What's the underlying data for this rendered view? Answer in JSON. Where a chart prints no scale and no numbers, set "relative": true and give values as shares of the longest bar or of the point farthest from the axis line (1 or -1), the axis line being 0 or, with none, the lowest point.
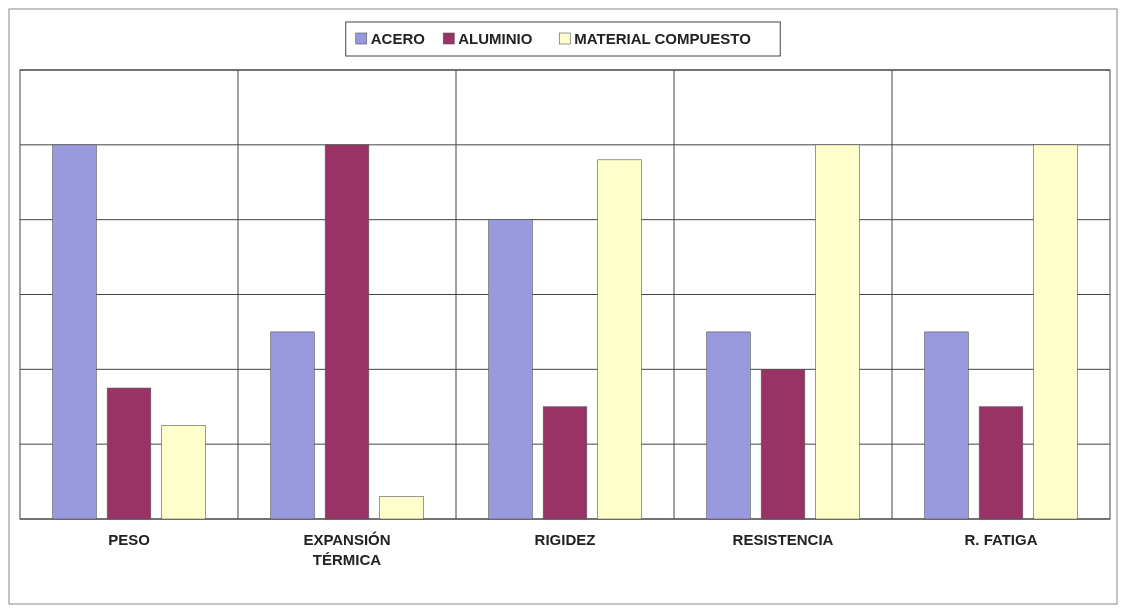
{
  "chart_data": {
    "type": "bar",
    "relative": true,
    "categories": [
      "PESO",
      "EXPANSIÓN TÉRMICA",
      "RIGIDEZ",
      "RESISTENCIA",
      "R. FATIGA"
    ],
    "series": [
      {
        "name": "ACERO",
        "color": "#9999dd",
        "values": [
          1,
          0.5,
          0.8,
          0.5,
          0.5
        ]
      },
      {
        "name": "ALUMINIO",
        "color": "#993366",
        "values": [
          0.35,
          1,
          0.3,
          0.4,
          0.3
        ]
      },
      {
        "name": "MATERIAL COMPUESTO",
        "color": "#ffffcc",
        "values": [
          0.25,
          0.06,
          0.96,
          1,
          1
        ]
      }
    ],
    "grid": true,
    "legend": "top"
  }
}
